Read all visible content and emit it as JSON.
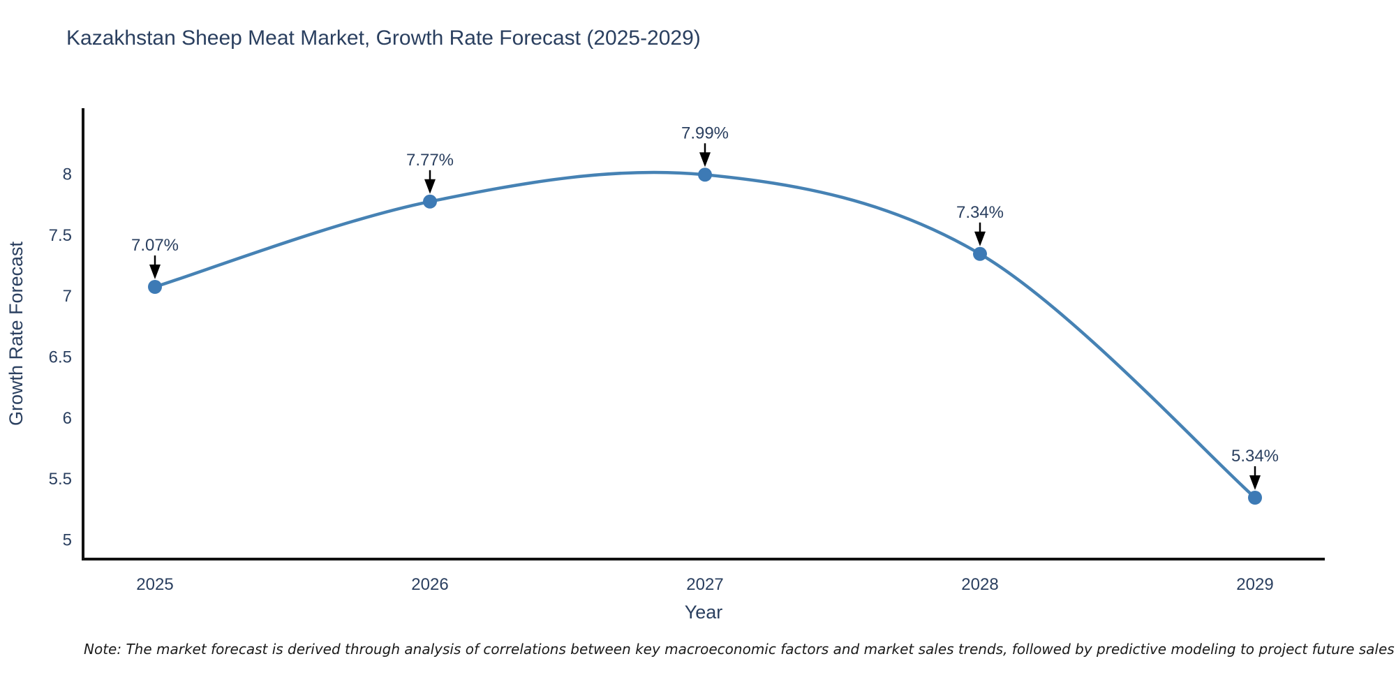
{
  "chart_data": {
    "type": "line",
    "title": "Kazakhstan Sheep Meat Market, Growth Rate Forecast (2025-2029)",
    "xlabel": "Year",
    "ylabel": "Growth Rate Forecast",
    "categories": [
      "2025",
      "2026",
      "2027",
      "2028",
      "2029"
    ],
    "series": [
      {
        "name": "Growth Rate Forecast",
        "values": [
          7.07,
          7.77,
          7.99,
          7.34,
          5.34
        ],
        "point_labels": [
          "7.07%",
          "7.77%",
          "7.99%",
          "7.34%",
          "5.34%"
        ]
      }
    ],
    "yticks": [
      5,
      5.5,
      6,
      6.5,
      7,
      7.5,
      8
    ],
    "ytick_labels": [
      "5",
      "5.5",
      "6",
      "6.5",
      "7",
      "7.5",
      "8"
    ],
    "ylim": [
      4.84,
      8.53
    ],
    "grid": false,
    "legend_position": "none",
    "line_shape": "spline",
    "annotations_have_arrows": true,
    "colors": {
      "line": "#4682b4",
      "marker": "#3d7ab5",
      "axis": "#111111",
      "tick_text": "#2a3f5f",
      "annotation_text": "#2a3f5f",
      "arrow": "#000000",
      "note_text": "#1a1a1a",
      "background": "#ffffff"
    },
    "note": "Note: The market forecast is derived through analysis of correlations between key macroeconomic factors and market sales trends, followed by predictive modeling to project future sales"
  }
}
